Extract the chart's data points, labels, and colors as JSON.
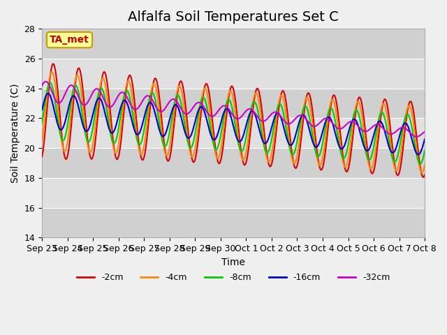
{
  "title": "Alfalfa Soil Temperatures Set C",
  "xlabel": "Time",
  "ylabel": "Soil Temperature (C)",
  "ylim": [
    14,
    28
  ],
  "yticks": [
    14,
    16,
    18,
    20,
    22,
    24,
    26,
    28
  ],
  "annotation": "TA_met",
  "annotation_color": "#cc0000",
  "annotation_bg": "#ffff99",
  "annotation_border": "#cc9900",
  "series": [
    {
      "label": "-2cm",
      "color": "#dd0000",
      "lw": 1.5
    },
    {
      "label": "-4cm",
      "color": "#ff8800",
      "lw": 1.5
    },
    {
      "label": "-8cm",
      "color": "#00cc00",
      "lw": 1.5
    },
    {
      "label": "-16cm",
      "color": "#0000cc",
      "lw": 1.5
    },
    {
      "label": "-32cm",
      "color": "#cc00cc",
      "lw": 1.5
    }
  ],
  "tick_labels": [
    "Sep 23",
    "Sep 24",
    "Sep 25",
    "Sep 26",
    "Sep 27",
    "Sep 28",
    "Sep 29",
    "Sep 30",
    "Oct 1",
    "Oct 2",
    "Oct 3",
    "Oct 4",
    "Oct 5",
    "Oct 6",
    "Oct 7",
    "Oct 8"
  ],
  "bg_color": "#e8e8e8",
  "plot_bg": "#e8e8e8",
  "title_fontsize": 14,
  "axis_fontsize": 10,
  "tick_fontsize": 9
}
